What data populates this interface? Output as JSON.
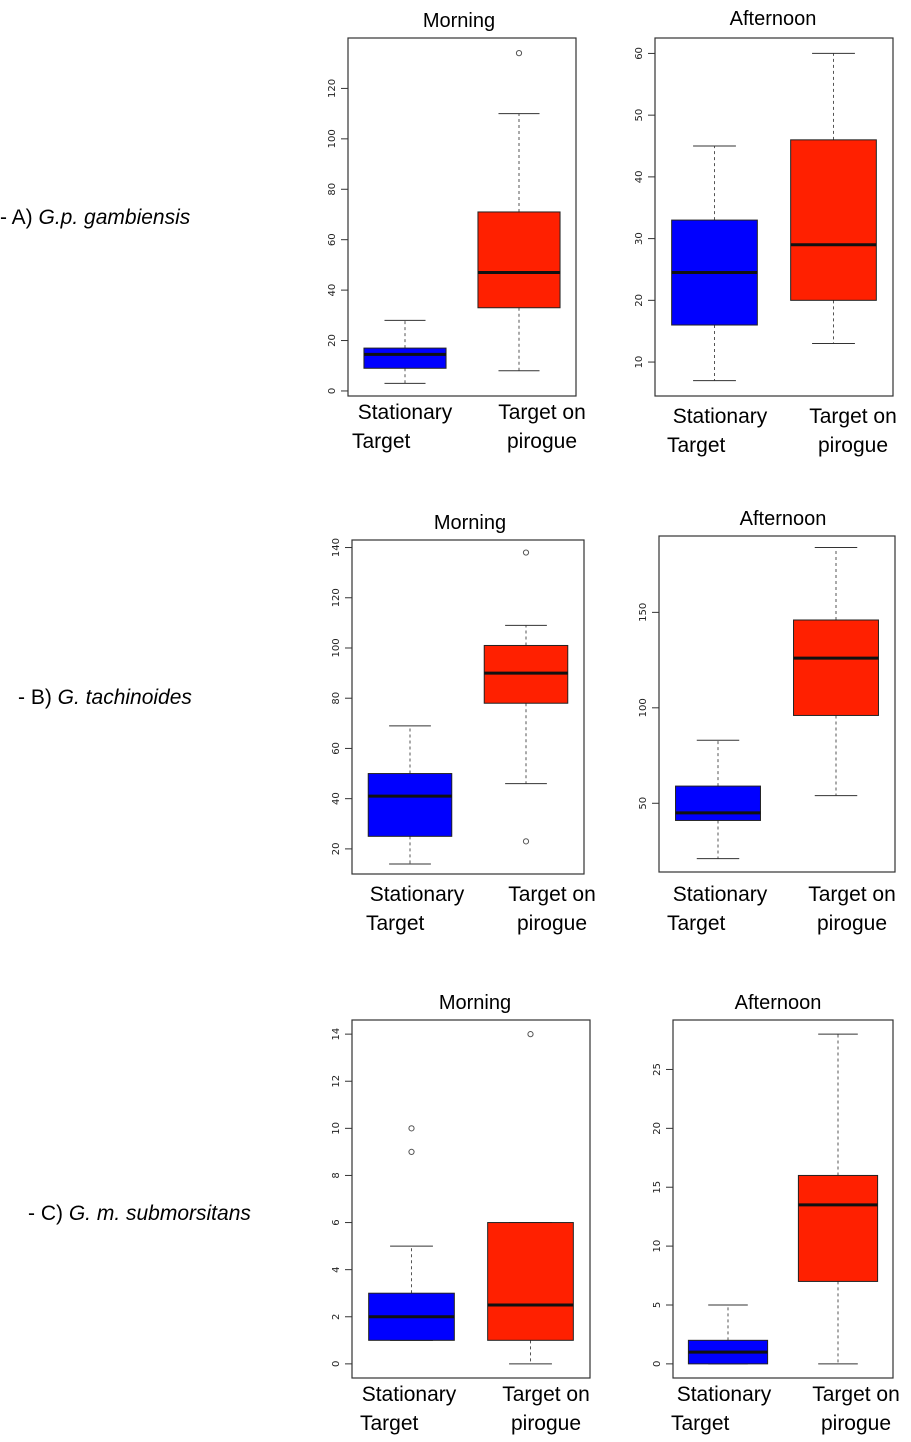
{
  "figure": {
    "rows": [
      {
        "prefix": "- A) ",
        "species": "G.p. gambiensis"
      },
      {
        "prefix": "- B) ",
        "species": "G. tachinoides"
      },
      {
        "prefix": "- C) ",
        "species": "G. m. submorsitans"
      }
    ],
    "category_labels": [
      {
        "line1": "Stationary",
        "line2": "Target"
      },
      {
        "line1": "Target on",
        "line2": "pirogue"
      }
    ]
  },
  "chart_data": [
    {
      "type": "boxplot",
      "row": "A",
      "title": "Morning",
      "ylim": [
        -2,
        140
      ],
      "yticks": [
        0,
        20,
        40,
        60,
        80,
        100,
        120
      ],
      "categories": [
        "Stationary Target",
        "Target on pirogue"
      ],
      "boxes": [
        {
          "whisker_low": 3,
          "q1": 9,
          "median": 14.5,
          "q3": 17,
          "whisker_high": 28,
          "outliers": [],
          "color": "#0000ff"
        },
        {
          "whisker_low": 8,
          "q1": 33,
          "median": 47,
          "q3": 71,
          "whisker_high": 110,
          "outliers": [
            134
          ],
          "color": "#ff2000"
        }
      ]
    },
    {
      "type": "boxplot",
      "row": "A",
      "title": "Afternoon",
      "ylim": [
        4.5,
        62.5
      ],
      "yticks": [
        10,
        20,
        30,
        40,
        50,
        60
      ],
      "categories": [
        "Stationary Target",
        "Target on pirogue"
      ],
      "boxes": [
        {
          "whisker_low": 7,
          "q1": 16,
          "median": 24.5,
          "q3": 33,
          "whisker_high": 45,
          "outliers": [],
          "color": "#0000ff"
        },
        {
          "whisker_low": 13,
          "q1": 20,
          "median": 29,
          "q3": 46,
          "whisker_high": 60,
          "outliers": [],
          "color": "#ff2000"
        }
      ]
    },
    {
      "type": "boxplot",
      "row": "B",
      "title": "Morning",
      "ylim": [
        10,
        143
      ],
      "yticks": [
        20,
        40,
        60,
        80,
        100,
        120,
        140
      ],
      "categories": [
        "Stationary Target",
        "Target on pirogue"
      ],
      "boxes": [
        {
          "whisker_low": 14,
          "q1": 25,
          "median": 41,
          "q3": 50,
          "whisker_high": 69,
          "outliers": [],
          "color": "#0000ff"
        },
        {
          "whisker_low": 46,
          "q1": 78,
          "median": 90,
          "q3": 101,
          "whisker_high": 109,
          "outliers": [
            23,
            138
          ],
          "color": "#ff2000"
        }
      ]
    },
    {
      "type": "boxplot",
      "row": "B",
      "title": "Afternoon",
      "ylim": [
        14,
        190
      ],
      "yticks": [
        50,
        100,
        150
      ],
      "categories": [
        "Stationary Target",
        "Target on pirogue"
      ],
      "boxes": [
        {
          "whisker_low": 21,
          "q1": 41,
          "median": 45,
          "q3": 59,
          "whisker_high": 83,
          "outliers": [],
          "color": "#0000ff"
        },
        {
          "whisker_low": 54,
          "q1": 96,
          "median": 126,
          "q3": 146,
          "whisker_high": 184,
          "outliers": [],
          "color": "#ff2000"
        }
      ]
    },
    {
      "type": "boxplot",
      "row": "C",
      "title": "Morning",
      "ylim": [
        -0.6,
        14.6
      ],
      "yticks": [
        0,
        2,
        4,
        6,
        8,
        10,
        12,
        14
      ],
      "categories": [
        "Stationary Target",
        "Target on pirogue"
      ],
      "boxes": [
        {
          "whisker_low": 1,
          "q1": 1,
          "median": 2,
          "q3": 3,
          "whisker_high": 5,
          "outliers": [
            9,
            10
          ],
          "color": "#0000ff"
        },
        {
          "whisker_low": 0,
          "q1": 1,
          "median": 2.5,
          "q3": 6,
          "whisker_high": 6,
          "outliers": [
            14
          ],
          "color": "#ff2000"
        }
      ]
    },
    {
      "type": "boxplot",
      "row": "C",
      "title": "Afternoon",
      "ylim": [
        -1.2,
        29.2
      ],
      "yticks": [
        0,
        5,
        10,
        15,
        20,
        25
      ],
      "categories": [
        "Stationary Target",
        "Target on pirogue"
      ],
      "boxes": [
        {
          "whisker_low": 0,
          "q1": 0,
          "median": 1,
          "q3": 2,
          "whisker_high": 5,
          "outliers": [],
          "color": "#0000ff"
        },
        {
          "whisker_low": 0,
          "q1": 7,
          "median": 13.5,
          "q3": 16,
          "whisker_high": 28,
          "outliers": [],
          "color": "#ff2000"
        }
      ]
    }
  ]
}
